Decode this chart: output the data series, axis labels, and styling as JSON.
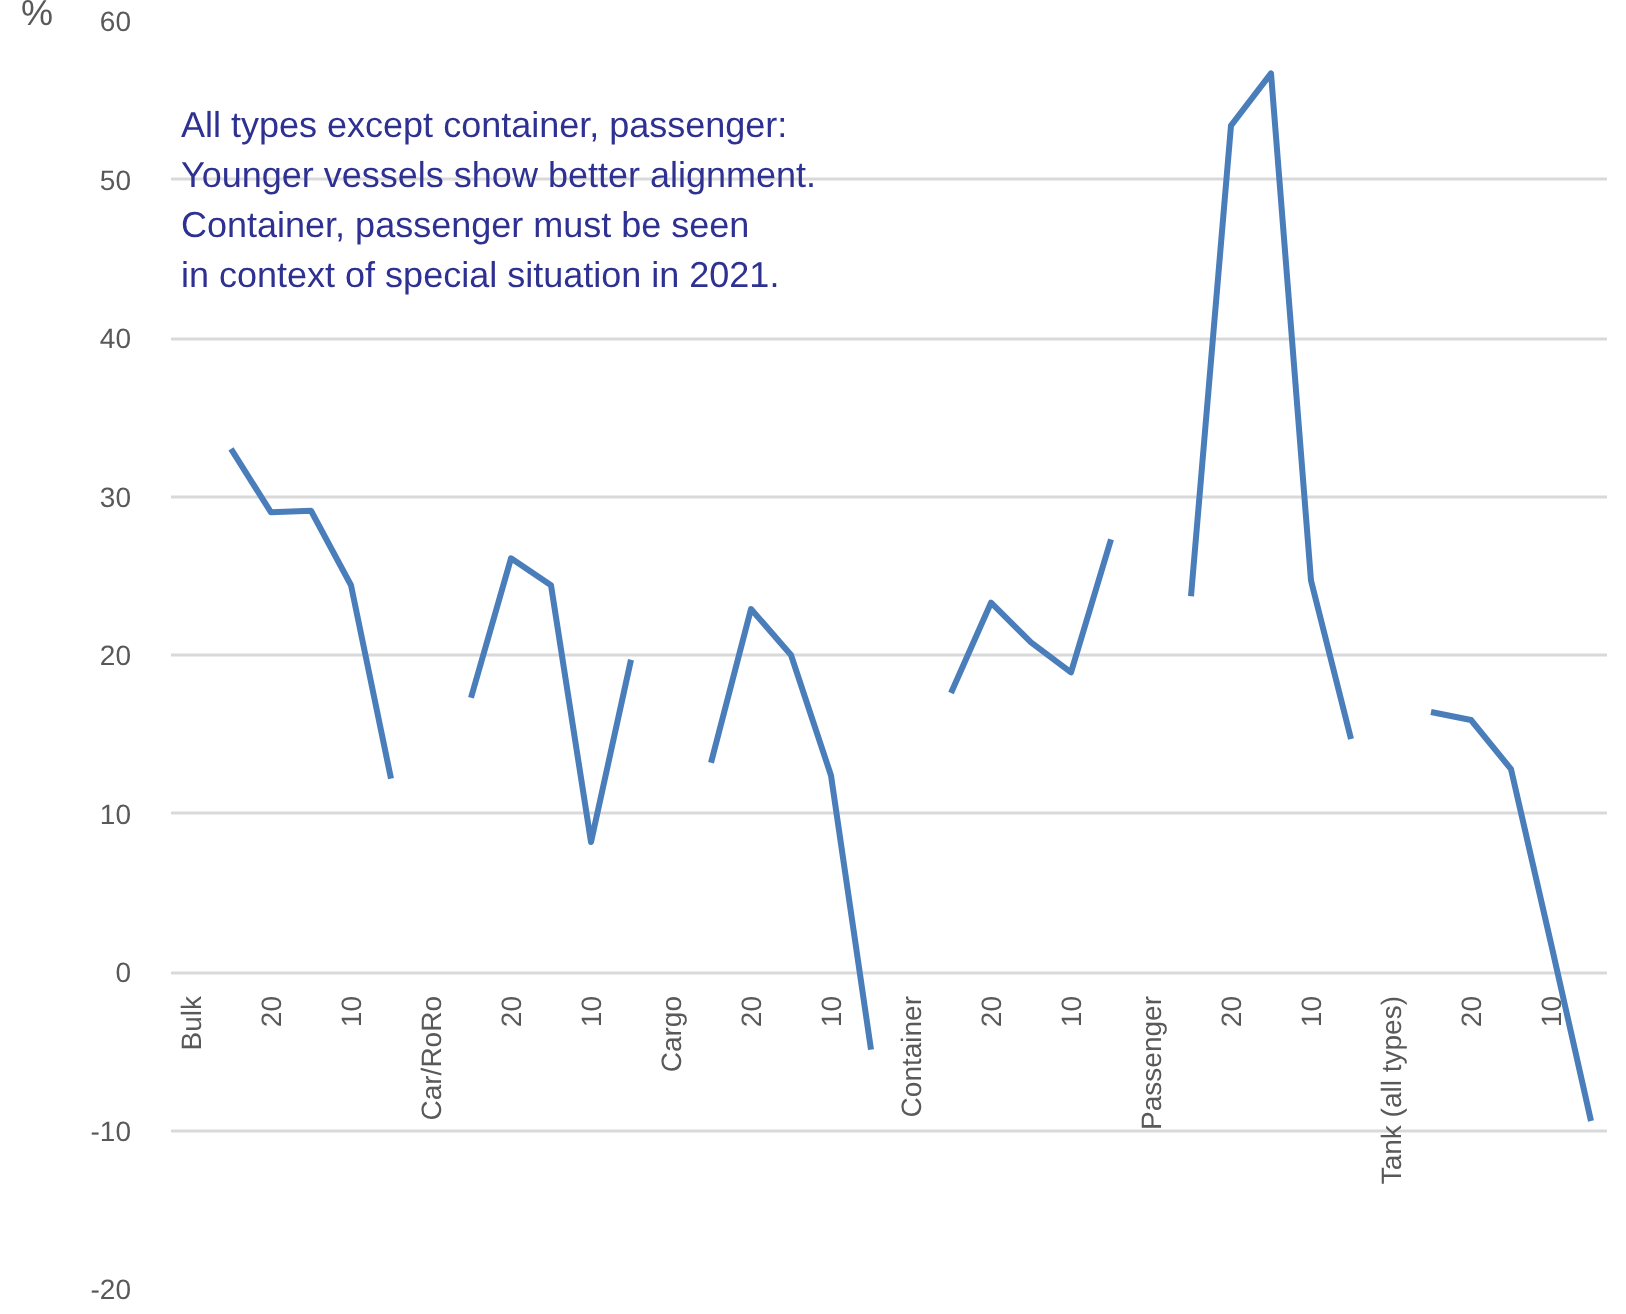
{
  "chart_data": {
    "type": "line",
    "ylabel": "%",
    "categories": [
      "Bulk",
      null,
      "20",
      null,
      "10",
      null,
      "Car/RoRo",
      null,
      "20",
      null,
      "10",
      null,
      "Cargo",
      null,
      "20",
      null,
      "10",
      null,
      "Container",
      null,
      "20",
      null,
      "10",
      null,
      "Passenger",
      null,
      "20",
      null,
      "10",
      null,
      "Tank (all types)",
      null,
      "20",
      null,
      "10",
      null
    ],
    "series": [
      {
        "color": "#4a7ebb",
        "values": [
          null,
          33.0,
          29.0,
          29.1,
          24.4,
          12.2,
          null,
          17.3,
          26.1,
          24.4,
          8.2,
          19.7,
          null,
          13.2,
          22.9,
          20.0,
          12.4,
          -4.9,
          null,
          17.6,
          23.3,
          20.8,
          18.9,
          27.3,
          null,
          23.7,
          53.4,
          56.7,
          24.7,
          14.7,
          null,
          16.4,
          15.9,
          12.8,
          1.8,
          -9.4
        ]
      }
    ],
    "ylim": [
      -20,
      60
    ],
    "yticks": [
      -20,
      -10,
      0,
      10,
      20,
      30,
      40,
      50,
      60
    ],
    "grid": "y",
    "line_style": "solid",
    "marker": "none",
    "annotations": [
      "All types except container, passenger:\nYounger vessels show better alignment.\nContainer, passenger must be seen\nin context of special situation in 2021."
    ]
  }
}
